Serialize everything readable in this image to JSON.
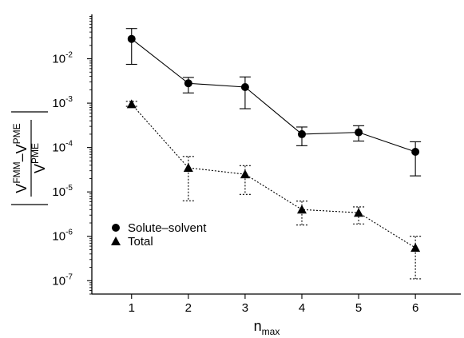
{
  "chart_data": {
    "type": "line",
    "x": [
      1,
      2,
      3,
      4,
      5,
      6
    ],
    "xlim": [
      0.3,
      6.8
    ],
    "ylim": [
      5e-08,
      0.1
    ],
    "yscale": "log",
    "x_ticks": [
      "1",
      "2",
      "3",
      "4",
      "5",
      "6"
    ],
    "y_ticks": [
      {
        "value": 0.01,
        "base": "10",
        "exp": "-2"
      },
      {
        "value": 0.001,
        "base": "10",
        "exp": "-3"
      },
      {
        "value": 0.0001,
        "base": "10",
        "exp": "-4"
      },
      {
        "value": 1e-05,
        "base": "10",
        "exp": "-5"
      },
      {
        "value": 1e-06,
        "base": "10",
        "exp": "-6"
      },
      {
        "value": 1e-07,
        "base": "10",
        "exp": "-7"
      }
    ],
    "xlabel": {
      "main": "n",
      "sub": "max"
    },
    "ylabel": {
      "numerator": {
        "v1": "V",
        "s1": "FMM",
        "dash": "–",
        "v2": "V",
        "s2": "PME"
      },
      "denominator": {
        "v": "V",
        "s": "PME"
      }
    },
    "legend_position": "lower-left",
    "series": [
      {
        "name": "Solute–solvent",
        "marker": "circle",
        "line": "solid",
        "values": [
          0.028,
          0.0028,
          0.0023,
          0.0002,
          0.00022,
          8e-05
        ],
        "err_low": [
          0.0075,
          0.0017,
          0.00075,
          0.00011,
          0.00014,
          2.3e-05
        ],
        "err_high": [
          0.048,
          0.0038,
          0.0039,
          0.00029,
          0.00031,
          0.000135
        ]
      },
      {
        "name": "Total",
        "marker": "triangle",
        "line": "dotted",
        "values": [
          0.00095,
          3.5e-05,
          2.5e-05,
          4e-06,
          3.4e-06,
          5.5e-07
        ],
        "err_low": [
          0.00085,
          6.3e-06,
          8.8e-06,
          1.8e-06,
          1.9e-06,
          1.1e-07
        ],
        "err_high": [
          0.0011,
          6.3e-05,
          3.9e-05,
          6.2e-06,
          4.6e-06,
          1e-06
        ]
      }
    ]
  }
}
